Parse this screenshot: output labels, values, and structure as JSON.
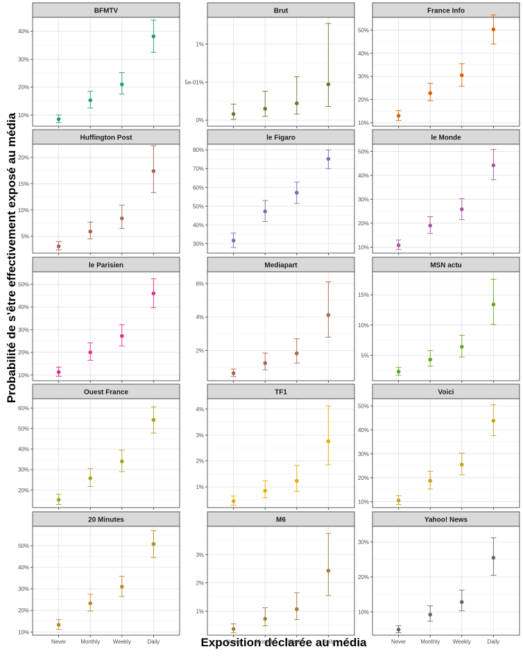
{
  "figure": {
    "ylabel": "Probabilité de s’être effectivement exposé au média",
    "xlabel": "Exposition déclarée au média"
  },
  "chart_data": [
    {
      "type": "scatter",
      "title": "BFMTV",
      "categories": [
        "Never",
        "Monthly",
        "Weekly",
        "Daily"
      ],
      "ylim": [
        0.06,
        0.45
      ],
      "ticks": [
        0.1,
        0.2,
        0.3,
        0.4
      ],
      "tick_labels": [
        "10%",
        "20%",
        "30%",
        "40%"
      ],
      "color": "#1b9e77",
      "values": [
        0.085,
        0.153,
        0.21,
        0.382
      ],
      "lower": [
        0.073,
        0.125,
        0.175,
        0.325
      ],
      "upper": [
        0.1,
        0.185,
        0.252,
        0.44
      ]
    },
    {
      "type": "scatter",
      "title": "Brut",
      "categories": [
        "Never",
        "Monthly",
        "Weekly",
        "Daily"
      ],
      "ylim": [
        -0.0008,
        0.0135
      ],
      "ticks": [
        0,
        0.005,
        0.01
      ],
      "tick_labels": [
        "0%",
        "5e-01%",
        "1%"
      ],
      "color": "#667a2e",
      "values": [
        0.0008,
        0.0015,
        0.0022,
        0.0047
      ],
      "lower": [
        0.0001,
        0.0005,
        0.0008,
        0.0018
      ],
      "upper": [
        0.0021,
        0.0038,
        0.0057,
        0.0127
      ]
    },
    {
      "type": "scatter",
      "title": "France Info",
      "categories": [
        "Never",
        "Monthly",
        "Weekly",
        "Daily"
      ],
      "ylim": [
        0.085,
        0.555
      ],
      "ticks": [
        0.1,
        0.2,
        0.3,
        0.4,
        0.5
      ],
      "tick_labels": [
        "10%",
        "20%",
        "30%",
        "40%",
        "50%"
      ],
      "color": "#d95f02",
      "values": [
        0.13,
        0.228,
        0.305,
        0.503
      ],
      "lower": [
        0.11,
        0.195,
        0.258,
        0.44
      ],
      "upper": [
        0.152,
        0.27,
        0.355,
        0.565
      ]
    },
    {
      "type": "scatter",
      "title": "Huffington Post",
      "categories": [
        "Never",
        "Monthly",
        "Weekly",
        "Daily"
      ],
      "ylim": [
        0.018,
        0.225
      ],
      "ticks": [
        0.05,
        0.1,
        0.15,
        0.2
      ],
      "tick_labels": [
        "5%",
        "10%",
        "15%",
        "20%"
      ],
      "color": "#a6604b",
      "values": [
        0.031,
        0.059,
        0.084,
        0.174
      ],
      "lower": [
        0.024,
        0.045,
        0.065,
        0.133
      ],
      "upper": [
        0.04,
        0.077,
        0.109,
        0.222
      ]
    },
    {
      "type": "scatter",
      "title": "le Figaro",
      "categories": [
        "Never",
        "Monthly",
        "Weekly",
        "Daily"
      ],
      "ylim": [
        0.25,
        0.83
      ],
      "ticks": [
        0.3,
        0.4,
        0.5,
        0.6,
        0.7,
        0.8
      ],
      "tick_labels": [
        "30%",
        "40%",
        "50%",
        "60%",
        "70%",
        "80%"
      ],
      "color": "#7570b3",
      "values": [
        0.317,
        0.472,
        0.572,
        0.752
      ],
      "lower": [
        0.28,
        0.418,
        0.515,
        0.7
      ],
      "upper": [
        0.357,
        0.53,
        0.628,
        0.8
      ]
    },
    {
      "type": "scatter",
      "title": "le Monde",
      "categories": [
        "Never",
        "Monthly",
        "Weekly",
        "Daily"
      ],
      "ylim": [
        0.075,
        0.53
      ],
      "ticks": [
        0.1,
        0.2,
        0.3,
        0.4,
        0.5
      ],
      "tick_labels": [
        "10%",
        "20%",
        "30%",
        "40%",
        "50%"
      ],
      "color": "#a953a3",
      "values": [
        0.108,
        0.19,
        0.258,
        0.442
      ],
      "lower": [
        0.09,
        0.157,
        0.215,
        0.382
      ],
      "upper": [
        0.13,
        0.227,
        0.303,
        0.508
      ]
    },
    {
      "type": "scatter",
      "title": "le Parisien",
      "categories": [
        "Never",
        "Monthly",
        "Weekly",
        "Daily"
      ],
      "ylim": [
        0.075,
        0.555
      ],
      "ticks": [
        0.1,
        0.2,
        0.3,
        0.4,
        0.5
      ],
      "tick_labels": [
        "10%",
        "20%",
        "30%",
        "40%",
        "50%"
      ],
      "color": "#e7298a",
      "values": [
        0.113,
        0.2,
        0.272,
        0.46
      ],
      "lower": [
        0.095,
        0.165,
        0.228,
        0.397
      ],
      "upper": [
        0.135,
        0.242,
        0.322,
        0.525
      ]
    },
    {
      "type": "scatter",
      "title": "Mediapart",
      "categories": [
        "Never",
        "Monthly",
        "Weekly",
        "Daily"
      ],
      "ylim": [
        0.002,
        0.067
      ],
      "ticks": [
        0.02,
        0.04,
        0.06
      ],
      "tick_labels": [
        "2%",
        "4%",
        "6%"
      ],
      "color": "#a9684a",
      "values": [
        0.0065,
        0.0125,
        0.0183,
        0.0412
      ],
      "lower": [
        0.0045,
        0.0085,
        0.0125,
        0.028
      ],
      "upper": [
        0.009,
        0.0185,
        0.027,
        0.061
      ]
    },
    {
      "type": "scatter",
      "title": "MSN actu",
      "categories": [
        "Never",
        "Monthly",
        "Weekly",
        "Daily"
      ],
      "ylim": [
        0.008,
        0.188
      ],
      "ticks": [
        0.05,
        0.1,
        0.15
      ],
      "tick_labels": [
        "5%",
        "10%",
        "15%"
      ],
      "color": "#66a61e",
      "values": [
        0.023,
        0.043,
        0.064,
        0.134
      ],
      "lower": [
        0.017,
        0.032,
        0.047,
        0.101
      ],
      "upper": [
        0.03,
        0.058,
        0.083,
        0.176
      ]
    },
    {
      "type": "scatter",
      "title": "Ouest France",
      "categories": [
        "Never",
        "Monthly",
        "Weekly",
        "Daily"
      ],
      "ylim": [
        0.115,
        0.645
      ],
      "ticks": [
        0.2,
        0.3,
        0.4,
        0.5,
        0.6
      ],
      "tick_labels": [
        "20%",
        "30%",
        "40%",
        "50%",
        "60%"
      ],
      "color": "#a5a31a",
      "values": [
        0.153,
        0.258,
        0.34,
        0.542
      ],
      "lower": [
        0.13,
        0.218,
        0.29,
        0.478
      ],
      "upper": [
        0.18,
        0.305,
        0.395,
        0.605
      ]
    },
    {
      "type": "scatter",
      "title": "TF1",
      "categories": [
        "Never",
        "Monthly",
        "Weekly",
        "Daily"
      ],
      "ylim": [
        0.002,
        0.044
      ],
      "ticks": [
        0.01,
        0.02,
        0.03,
        0.04
      ],
      "tick_labels": [
        "1%",
        "2%",
        "3%",
        "4%"
      ],
      "color": "#e6ab02",
      "values": [
        0.0045,
        0.0085,
        0.0123,
        0.0276
      ],
      "lower": [
        0.0029,
        0.0058,
        0.0083,
        0.0185
      ],
      "upper": [
        0.0065,
        0.0123,
        0.0183,
        0.0412
      ]
    },
    {
      "type": "scatter",
      "title": "Voici",
      "categories": [
        "Never",
        "Monthly",
        "Weekly",
        "Daily"
      ],
      "ylim": [
        0.075,
        0.53
      ],
      "ticks": [
        0.1,
        0.2,
        0.3,
        0.4,
        0.5
      ],
      "tick_labels": [
        "10%",
        "20%",
        "30%",
        "40%",
        "50%"
      ],
      "color": "#c9a21a",
      "values": [
        0.105,
        0.187,
        0.255,
        0.438
      ],
      "lower": [
        0.088,
        0.153,
        0.212,
        0.375
      ],
      "upper": [
        0.125,
        0.227,
        0.303,
        0.505
      ]
    },
    {
      "type": "scatter",
      "title": "20 Minutes",
      "categories": [
        "Never",
        "Monthly",
        "Weekly",
        "Daily"
      ],
      "ylim": [
        0.085,
        0.59
      ],
      "ticks": [
        0.1,
        0.2,
        0.3,
        0.4,
        0.5
      ],
      "tick_labels": [
        "10%",
        "20%",
        "30%",
        "40%",
        "50%"
      ],
      "color": "#b8891c",
      "values": [
        0.133,
        0.233,
        0.31,
        0.508
      ],
      "lower": [
        0.112,
        0.197,
        0.265,
        0.445
      ],
      "upper": [
        0.158,
        0.275,
        0.358,
        0.57
      ]
    },
    {
      "type": "scatter",
      "title": "M6",
      "categories": [
        "Never",
        "Monthly",
        "Weekly",
        "Daily"
      ],
      "ylim": [
        0.0015,
        0.04
      ],
      "ticks": [
        0.01,
        0.02,
        0.03
      ],
      "tick_labels": [
        "1%",
        "2%",
        "3%"
      ],
      "color": "#a47d30",
      "values": [
        0.0037,
        0.0073,
        0.0107,
        0.0243
      ],
      "lower": [
        0.0024,
        0.0048,
        0.007,
        0.0155
      ],
      "upper": [
        0.0055,
        0.0112,
        0.0165,
        0.0375
      ]
    },
    {
      "type": "scatter",
      "title": "Yahoo! News",
      "categories": [
        "Never",
        "Monthly",
        "Weekly",
        "Daily"
      ],
      "ylim": [
        0.033,
        0.345
      ],
      "ticks": [
        0.1,
        0.2,
        0.3
      ],
      "tick_labels": [
        "10%",
        "20%",
        "30%"
      ],
      "color": "#666666",
      "values": [
        0.049,
        0.092,
        0.128,
        0.255
      ],
      "lower": [
        0.04,
        0.073,
        0.103,
        0.205
      ],
      "upper": [
        0.06,
        0.117,
        0.162,
        0.312
      ]
    }
  ]
}
